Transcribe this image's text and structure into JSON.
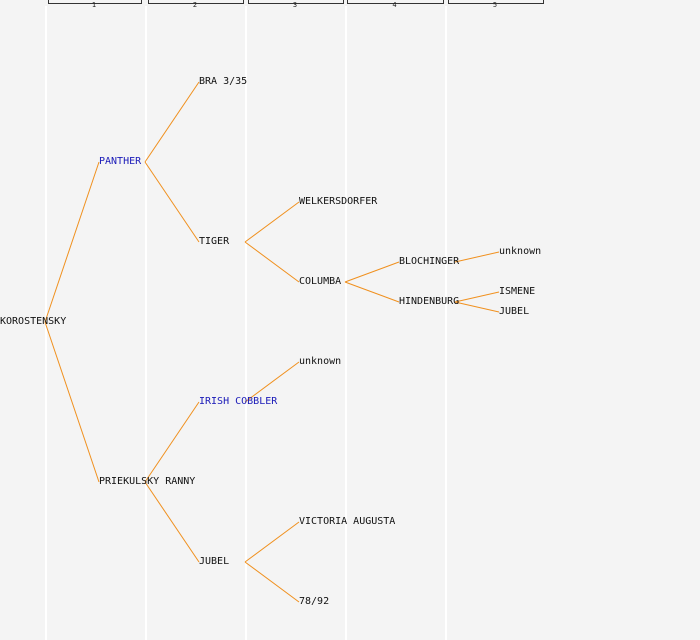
{
  "generations": [
    "1",
    "2",
    "3",
    "4",
    "5"
  ],
  "colors": {
    "link": "#f0901e",
    "highlight": "#1a1ab8",
    "text": "#111111",
    "background": "#f4f4f4"
  },
  "tree": {
    "name": "KOROSTENSKY",
    "children": [
      {
        "name": "PANTHER",
        "highlight": true,
        "children": [
          {
            "name": "BRA 3/35"
          },
          {
            "name": "TIGER",
            "children": [
              {
                "name": "WELKERSDORFER"
              },
              {
                "name": "COLUMBA",
                "children": [
                  {
                    "name": "BLOCHINGER",
                    "children": [
                      {
                        "name": "unknown"
                      }
                    ]
                  },
                  {
                    "name": "HINDENBURG",
                    "children": [
                      {
                        "name": "ISMENE"
                      },
                      {
                        "name": "JUBEL"
                      }
                    ]
                  }
                ]
              }
            ]
          }
        ]
      },
      {
        "name": "PRIEKULSKY RANNY",
        "children": [
          {
            "name": "IRISH COBBLER",
            "highlight": true,
            "children": [
              {
                "name": "unknown"
              }
            ]
          },
          {
            "name": "JUBEL",
            "children": [
              {
                "name": "VICTORIA AUGUSTA"
              },
              {
                "name": "78/92"
              }
            ]
          }
        ]
      }
    ]
  }
}
